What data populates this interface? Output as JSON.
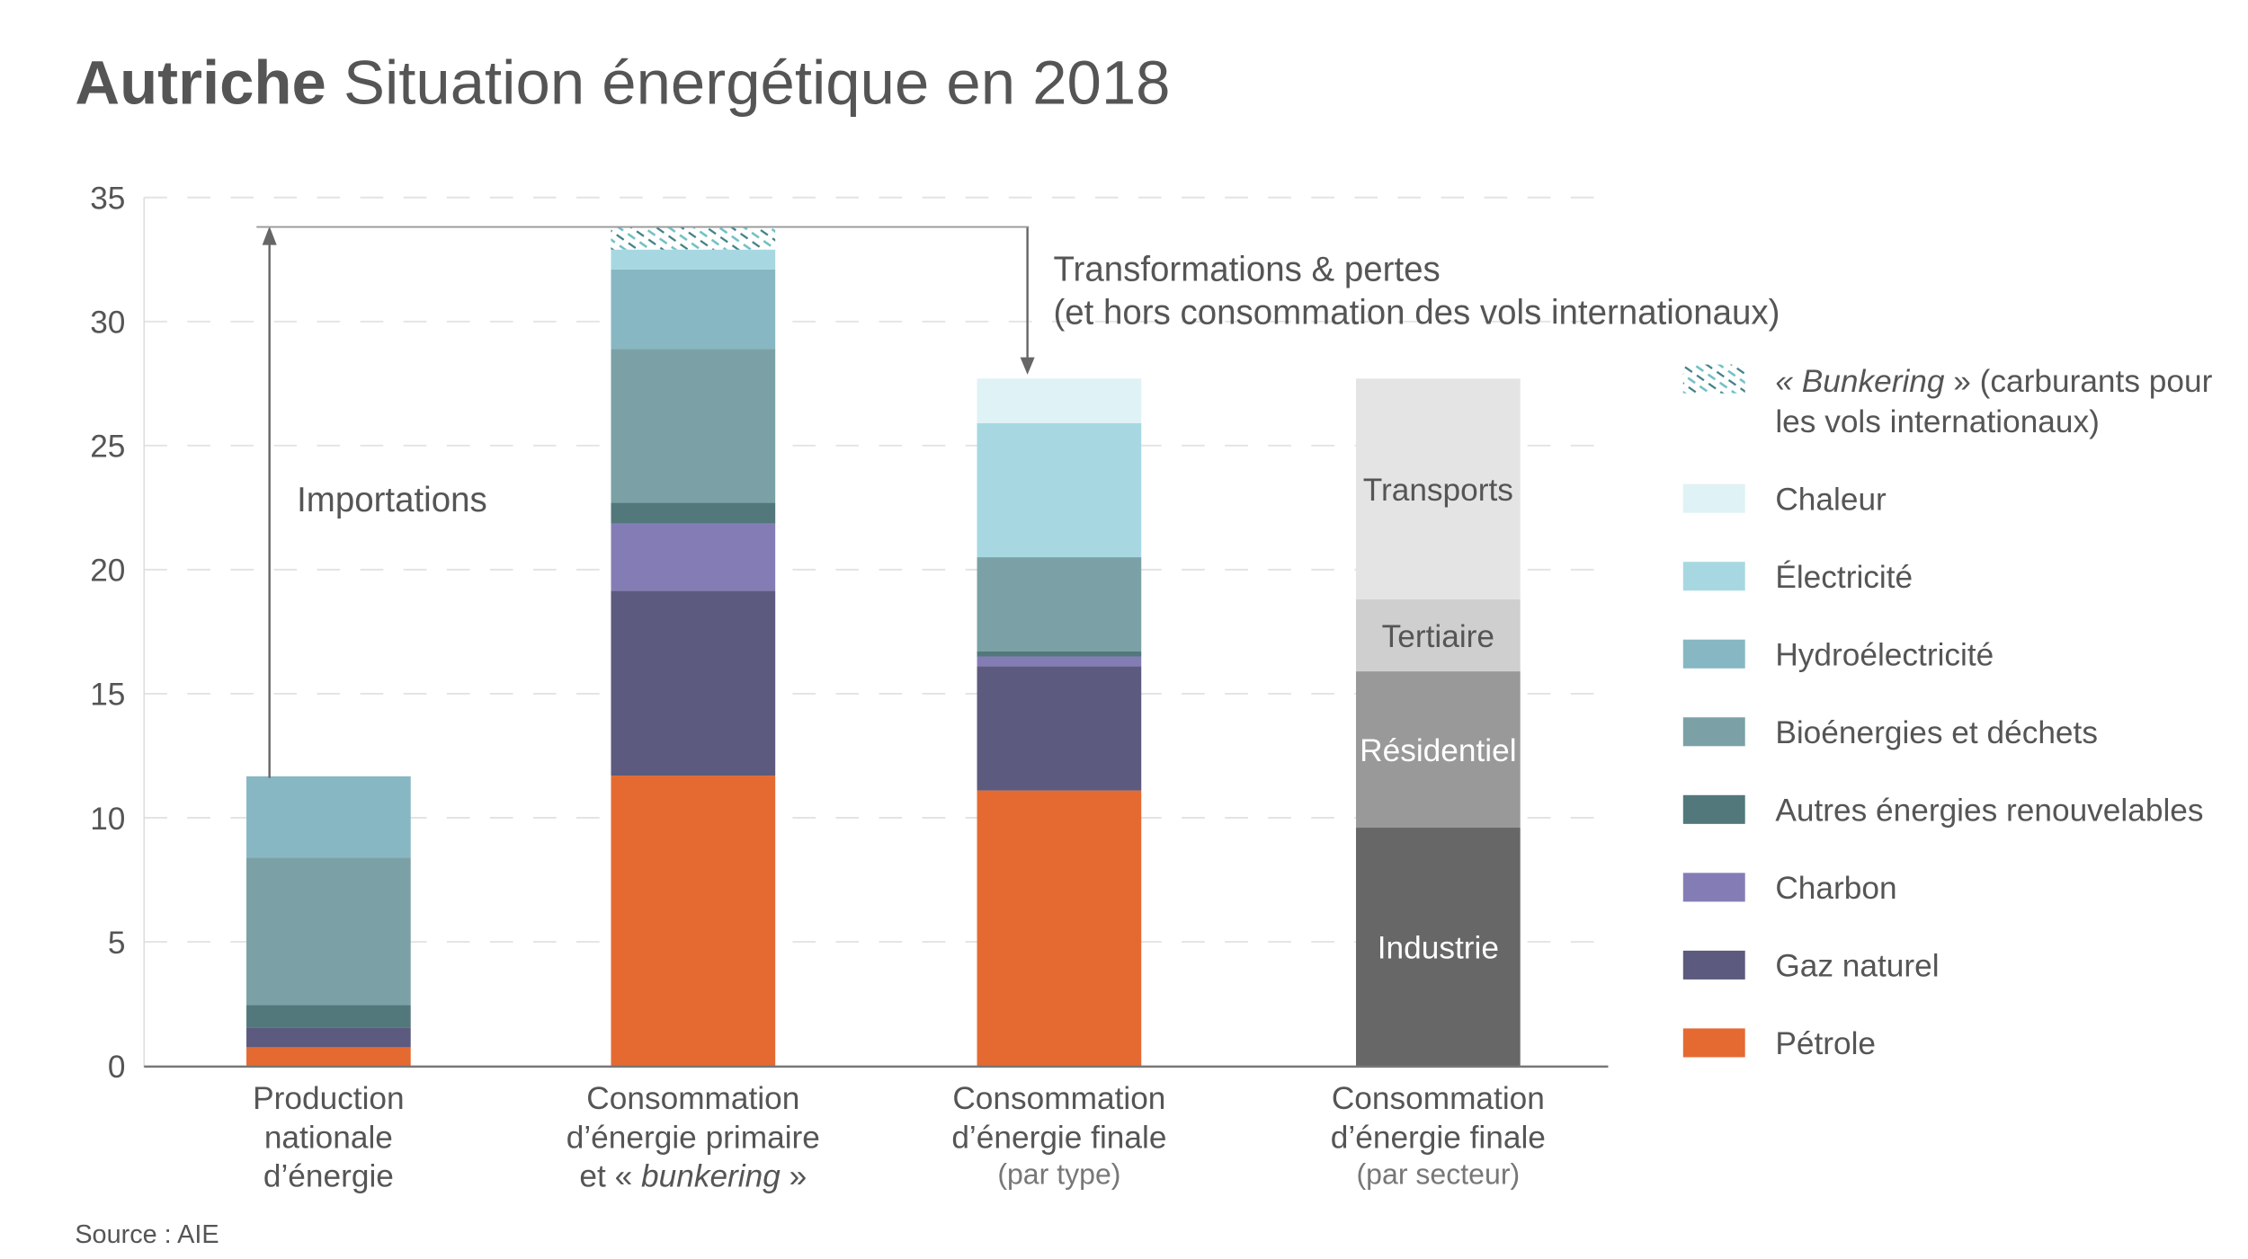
{
  "chart_data": {
    "type": "bar",
    "stacked": true,
    "title_bold": "Autriche",
    "title": "Situation énergétique en 2018",
    "source": "Source : AIE",
    "ylim": [
      0,
      35
    ],
    "yticks": [
      "0",
      "5",
      "10",
      "15",
      "20",
      "25",
      "30",
      "35"
    ],
    "grid": true,
    "legend_position": "right",
    "categories": [
      {
        "lines": [
          "Production",
          "nationale",
          "d’énergie"
        ],
        "sub": ""
      },
      {
        "lines": [
          "Consommation",
          "d’énergie primaire"
        ],
        "line3a": "et « ",
        "line3b": "bunkering",
        "line3c": " »",
        "sub": ""
      },
      {
        "lines": [
          "Consommation",
          "d’énergie finale"
        ],
        "sub": "(par type)"
      },
      {
        "lines": [
          "Consommation",
          "d’énergie finale"
        ],
        "sub": "(par secteur)"
      }
    ],
    "series": [
      {
        "name": "Pétrole",
        "color": "#e46a32",
        "values": [
          0.75,
          11.7,
          11.1,
          0
        ]
      },
      {
        "name": "Gaz naturel",
        "color": "#5c5a7e",
        "values": [
          0.8,
          7.45,
          5.0,
          0
        ]
      },
      {
        "name": "Charbon",
        "color": "#847db5",
        "values": [
          0,
          2.7,
          0.4,
          0
        ]
      },
      {
        "name": "Autres énergies renouvelables",
        "color": "#52787c",
        "values": [
          0.9,
          0.85,
          0.2,
          0
        ]
      },
      {
        "name": "Bioénergies et déchets",
        "color": "#7ba1a6",
        "values": [
          5.95,
          6.2,
          3.8,
          0
        ]
      },
      {
        "name": "Hydroélectricité",
        "color": "#87b7c3",
        "values": [
          3.27,
          3.2,
          0,
          0
        ]
      },
      {
        "name": "Électricité",
        "color": "#a7d8e2",
        "values": [
          0,
          0.8,
          5.4,
          0
        ]
      },
      {
        "name": "Chaleur",
        "color": "#dff2f5",
        "values": [
          0,
          0,
          1.8,
          0
        ]
      },
      {
        "name": "« Bunkering » (carburants pour les vols internationaux)",
        "color": "#7fc3c8",
        "values": [
          0,
          0.9,
          0,
          0
        ],
        "pattern": true
      }
    ],
    "sector_series": [
      {
        "name": "Industrie",
        "color": "#676767",
        "value": 9.6,
        "text_color": "#ffffff"
      },
      {
        "name": "Résidentiel",
        "color": "#999999",
        "value": 6.3,
        "text_color": "#ffffff"
      },
      {
        "name": "Tertiaire",
        "color": "#cfcfcf",
        "value": 2.9,
        "text_color": "#555555"
      },
      {
        "name": "Transports",
        "color": "#e4e4e4",
        "value": 8.9,
        "text_color": "#555555"
      }
    ],
    "legend": {
      "bunkering_a": "« ",
      "bunkering_b": "Bunkering",
      "bunkering_c": " » (carburants pour",
      "bunkering_line2": "les vols internationaux)",
      "items": [
        "Chaleur",
        "Électricité",
        "Hydroélectricité",
        "Bioénergies et déchets",
        "Autres énergies renouvelables",
        "Charbon",
        "Gaz naturel",
        "Pétrole"
      ]
    },
    "annotations": {
      "imports": "Importations",
      "losses_line1": "Transformations & pertes",
      "losses_line2": "(et hors consommation des vols internationaux)"
    }
  }
}
